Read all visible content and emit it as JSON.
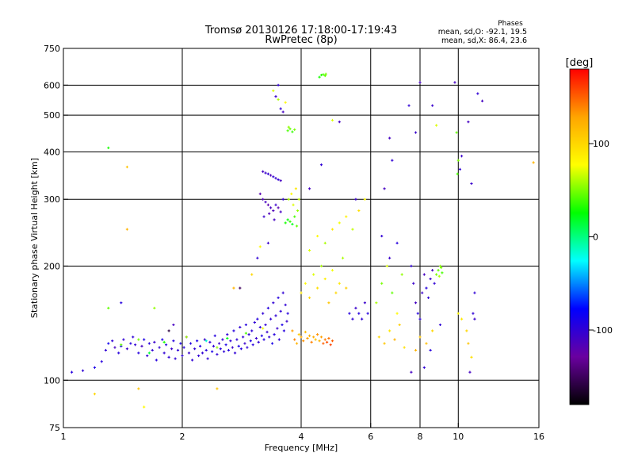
{
  "title": {
    "line1": "Tromsø 20130126 17:18:00-17:19:43",
    "line2": "RwPretec (8p)"
  },
  "stats": {
    "heading": "Phases",
    "line_o": "mean, sd,O: -92.1, 19.5",
    "line_x": "mean, sd,X: 86.4, 23.6"
  },
  "colorbar": {
    "label": "[deg]",
    "min": -180,
    "max": 180,
    "ticks": [
      {
        "value": 100,
        "label": "100"
      },
      {
        "value": 0,
        "label": "0"
      },
      {
        "value": -100,
        "label": "-100"
      }
    ],
    "stops": [
      "#000000",
      "#6a00a0",
      "#0000ff",
      "#00ffff",
      "#00ff00",
      "#ffff00",
      "#ffa500",
      "#ff0000"
    ]
  },
  "chart_data": {
    "type": "scatter",
    "xlabel": "Frequency [MHz]",
    "ylabel": "Stationary phase Virtual Height [km]",
    "xscale": "log",
    "yscale": "log",
    "xlim": [
      1,
      16
    ],
    "ylim": [
      75,
      750
    ],
    "grid": true,
    "xticks": [
      {
        "value": 1,
        "label": "1"
      },
      {
        "value": 2,
        "label": "2"
      },
      {
        "value": 4,
        "label": "4"
      },
      {
        "value": 6,
        "label": "6"
      },
      {
        "value": 8,
        "label": "8"
      },
      {
        "value": 10,
        "label": "10"
      },
      {
        "value": 16,
        "label": "16"
      }
    ],
    "yticks": [
      {
        "value": 75,
        "label": "75"
      },
      {
        "value": 100,
        "label": "100"
      },
      {
        "value": 200,
        "label": "200"
      },
      {
        "value": 300,
        "label": "300"
      },
      {
        "value": 400,
        "label": "400"
      },
      {
        "value": 500,
        "label": "500"
      },
      {
        "value": 600,
        "label": "600"
      },
      {
        "value": 750,
        "label": "750"
      }
    ],
    "xgrid": [
      2,
      4,
      6,
      8,
      10
    ],
    "ygrid": [
      100,
      200,
      300,
      400,
      500,
      600
    ],
    "points": [
      [
        1.05,
        105,
        -95
      ],
      [
        1.12,
        106,
        -100
      ],
      [
        1.2,
        108,
        -90
      ],
      [
        1.25,
        112,
        -95
      ],
      [
        1.28,
        120,
        -100
      ],
      [
        1.3,
        125,
        -85
      ],
      [
        1.33,
        127,
        -100
      ],
      [
        1.35,
        122,
        -110
      ],
      [
        1.38,
        118,
        -95
      ],
      [
        1.4,
        123,
        -90
      ],
      [
        1.42,
        128,
        -100
      ],
      [
        1.45,
        121,
        -105
      ],
      [
        1.48,
        125,
        -95
      ],
      [
        1.5,
        130,
        -100
      ],
      [
        1.52,
        124,
        -100
      ],
      [
        1.55,
        118,
        -95
      ],
      [
        1.58,
        123,
        -110
      ],
      [
        1.6,
        128,
        -90
      ],
      [
        1.63,
        116,
        -100
      ],
      [
        1.65,
        125,
        -95
      ],
      [
        1.68,
        120,
        -100
      ],
      [
        1.7,
        126,
        -105
      ],
      [
        1.72,
        113,
        -95
      ],
      [
        1.75,
        122,
        -100
      ],
      [
        1.78,
        128,
        -90
      ],
      [
        1.8,
        118,
        -100
      ],
      [
        1.82,
        124,
        -95
      ],
      [
        1.85,
        115,
        -100
      ],
      [
        1.88,
        121,
        -105
      ],
      [
        1.9,
        127,
        -95
      ],
      [
        1.92,
        114,
        -100
      ],
      [
        1.95,
        120,
        -100
      ],
      [
        1.98,
        125,
        -90
      ],
      [
        2.0,
        116,
        -100
      ],
      [
        2.02,
        122,
        -95
      ],
      [
        2.05,
        130,
        -100
      ],
      [
        2.08,
        118,
        -105
      ],
      [
        2.1,
        125,
        -95
      ],
      [
        2.12,
        113,
        -100
      ],
      [
        2.15,
        121,
        -100
      ],
      [
        2.18,
        127,
        -90
      ],
      [
        2.2,
        116,
        -100
      ],
      [
        2.22,
        123,
        -95
      ],
      [
        2.25,
        118,
        -100
      ],
      [
        2.28,
        128,
        -105
      ],
      [
        2.3,
        120,
        -95
      ],
      [
        2.32,
        114,
        -100
      ],
      [
        2.35,
        126,
        -100
      ],
      [
        2.38,
        119,
        -90
      ],
      [
        2.4,
        123,
        -100
      ],
      [
        2.42,
        131,
        -95
      ],
      [
        2.45,
        117,
        -100
      ],
      [
        2.48,
        125,
        -105
      ],
      [
        2.5,
        121,
        -95
      ],
      [
        2.53,
        128,
        -100
      ],
      [
        2.55,
        119,
        -100
      ],
      [
        2.58,
        124,
        -90
      ],
      [
        2.6,
        132,
        -100
      ],
      [
        2.62,
        120,
        -95
      ],
      [
        2.65,
        127,
        -100
      ],
      [
        2.68,
        122,
        -105
      ],
      [
        2.7,
        135,
        -95
      ],
      [
        2.72,
        118,
        -100
      ],
      [
        2.75,
        128,
        -100
      ],
      [
        2.78,
        123,
        -90
      ],
      [
        2.8,
        138,
        -100
      ],
      [
        2.82,
        121,
        -95
      ],
      [
        2.85,
        130,
        -100
      ],
      [
        2.88,
        125,
        -105
      ],
      [
        2.9,
        140,
        -95
      ],
      [
        2.92,
        122,
        -100
      ],
      [
        2.95,
        132,
        -100
      ],
      [
        2.98,
        127,
        -90
      ],
      [
        3.0,
        135,
        -100
      ],
      [
        3.02,
        124,
        -95
      ],
      [
        3.05,
        142,
        -100
      ],
      [
        3.08,
        129,
        -105
      ],
      [
        3.1,
        145,
        -95
      ],
      [
        3.12,
        126,
        -100
      ],
      [
        3.15,
        138,
        -100
      ],
      [
        3.18,
        131,
        -90
      ],
      [
        3.2,
        150,
        -100
      ],
      [
        3.22,
        128,
        -95
      ],
      [
        3.25,
        140,
        -100
      ],
      [
        3.28,
        134,
        -105
      ],
      [
        3.3,
        155,
        -95
      ],
      [
        3.32,
        130,
        -100
      ],
      [
        3.35,
        145,
        -100
      ],
      [
        3.38,
        125,
        -90
      ],
      [
        3.4,
        160,
        -100
      ],
      [
        3.42,
        132,
        -95
      ],
      [
        3.45,
        148,
        -100
      ],
      [
        3.48,
        137,
        -105
      ],
      [
        3.5,
        165,
        -95
      ],
      [
        3.52,
        128,
        -100
      ],
      [
        3.55,
        152,
        -100
      ],
      [
        3.58,
        140,
        -90
      ],
      [
        3.6,
        170,
        -100
      ],
      [
        3.62,
        135,
        -95
      ],
      [
        3.65,
        158,
        -100
      ],
      [
        3.68,
        143,
        -105
      ],
      [
        3.7,
        150,
        -95
      ],
      [
        1.4,
        124,
        45
      ],
      [
        1.55,
        128,
        50
      ],
      [
        1.8,
        126,
        30
      ],
      [
        2.05,
        130,
        60
      ],
      [
        2.3,
        127,
        -15
      ],
      [
        2.6,
        129,
        20
      ],
      [
        2.9,
        133,
        40
      ],
      [
        3.2,
        137,
        75
      ],
      [
        1.65,
        118,
        15
      ],
      [
        2.45,
        122,
        55
      ],
      [
        3.2,
        355,
        -110
      ],
      [
        3.25,
        352,
        -105
      ],
      [
        3.3,
        350,
        -100
      ],
      [
        3.35,
        347,
        -115
      ],
      [
        3.4,
        344,
        -100
      ],
      [
        3.45,
        341,
        -105
      ],
      [
        3.5,
        338,
        -100
      ],
      [
        3.55,
        336,
        -110
      ],
      [
        3.15,
        310,
        -120
      ],
      [
        3.2,
        300,
        -115
      ],
      [
        3.25,
        295,
        -110
      ],
      [
        3.3,
        290,
        -120
      ],
      [
        3.35,
        285,
        -110
      ],
      [
        3.4,
        280,
        -115
      ],
      [
        3.45,
        290,
        -105
      ],
      [
        3.5,
        285,
        -120
      ],
      [
        3.55,
        278,
        -110
      ],
      [
        3.6,
        300,
        -100
      ],
      [
        3.22,
        270,
        -105
      ],
      [
        3.32,
        275,
        -115
      ],
      [
        3.42,
        265,
        -110
      ],
      [
        3.65,
        260,
        30
      ],
      [
        3.7,
        265,
        25
      ],
      [
        3.75,
        262,
        35
      ],
      [
        3.8,
        258,
        20
      ],
      [
        3.85,
        270,
        40
      ],
      [
        3.9,
        255,
        45
      ],
      [
        3.72,
        300,
        60
      ],
      [
        3.82,
        290,
        70
      ],
      [
        3.92,
        280,
        55
      ],
      [
        3.78,
        310,
        80
      ],
      [
        3.88,
        320,
        90
      ],
      [
        3.95,
        300,
        65
      ],
      [
        3.5,
        550,
        60
      ],
      [
        3.55,
        520,
        -100
      ],
      [
        3.6,
        510,
        -110
      ],
      [
        3.45,
        560,
        -105
      ],
      [
        3.4,
        580,
        70
      ],
      [
        3.5,
        600,
        -100
      ],
      [
        3.65,
        540,
        80
      ],
      [
        3.7,
        455,
        40
      ],
      [
        3.75,
        460,
        45
      ],
      [
        3.8,
        452,
        35
      ],
      [
        3.85,
        458,
        50
      ],
      [
        3.72,
        465,
        55
      ],
      [
        4.55,
        640,
        40
      ],
      [
        4.6,
        635,
        45
      ],
      [
        4.5,
        638,
        35
      ],
      [
        4.62,
        642,
        50
      ],
      [
        4.45,
        630,
        30
      ],
      [
        3.8,
        135,
        130
      ],
      [
        3.85,
        128,
        140
      ],
      [
        3.9,
        125,
        120
      ],
      [
        3.95,
        132,
        110
      ],
      [
        4.0,
        130,
        125
      ],
      [
        4.05,
        127,
        135
      ],
      [
        4.1,
        134,
        115
      ],
      [
        4.15,
        129,
        130
      ],
      [
        4.2,
        131,
        120
      ],
      [
        4.25,
        126,
        140
      ],
      [
        4.3,
        130,
        125
      ],
      [
        4.35,
        128,
        110
      ],
      [
        4.4,
        132,
        135
      ],
      [
        4.45,
        127,
        120
      ],
      [
        4.5,
        130,
        130
      ],
      [
        4.55,
        125,
        150
      ],
      [
        4.6,
        128,
        140
      ],
      [
        4.65,
        126,
        155
      ],
      [
        4.7,
        129,
        145
      ],
      [
        4.75,
        124,
        160
      ],
      [
        4.8,
        127,
        150
      ],
      [
        4.0,
        170,
        90
      ],
      [
        4.1,
        180,
        80
      ],
      [
        4.2,
        165,
        100
      ],
      [
        4.3,
        190,
        70
      ],
      [
        4.4,
        175,
        95
      ],
      [
        4.5,
        200,
        60
      ],
      [
        4.6,
        185,
        85
      ],
      [
        4.7,
        160,
        110
      ],
      [
        4.8,
        195,
        75
      ],
      [
        4.9,
        170,
        100
      ],
      [
        5.0,
        180,
        90
      ],
      [
        5.1,
        210,
        60
      ],
      [
        5.2,
        175,
        105
      ],
      [
        5.3,
        150,
        -95
      ],
      [
        5.4,
        145,
        -100
      ],
      [
        5.5,
        155,
        -105
      ],
      [
        5.6,
        150,
        -95
      ],
      [
        5.7,
        145,
        -100
      ],
      [
        5.8,
        160,
        -105
      ],
      [
        5.9,
        150,
        -95
      ],
      [
        4.2,
        220,
        70
      ],
      [
        4.4,
        240,
        80
      ],
      [
        4.6,
        230,
        60
      ],
      [
        4.8,
        250,
        90
      ],
      [
        5.0,
        260,
        75
      ],
      [
        5.2,
        270,
        85
      ],
      [
        5.4,
        250,
        65
      ],
      [
        5.6,
        280,
        95
      ],
      [
        5.8,
        300,
        80
      ],
      [
        4.2,
        320,
        -110
      ],
      [
        4.5,
        370,
        -100
      ],
      [
        5.0,
        480,
        -110
      ],
      [
        5.5,
        300,
        -105
      ],
      [
        4.8,
        485,
        70
      ],
      [
        6.2,
        160,
        60
      ],
      [
        6.4,
        180,
        50
      ],
      [
        6.6,
        200,
        70
      ],
      [
        6.8,
        170,
        45
      ],
      [
        7.0,
        150,
        80
      ],
      [
        7.2,
        190,
        55
      ],
      [
        6.3,
        130,
        100
      ],
      [
        6.5,
        125,
        110
      ],
      [
        6.7,
        135,
        90
      ],
      [
        6.9,
        128,
        120
      ],
      [
        7.1,
        140,
        105
      ],
      [
        7.3,
        122,
        95
      ],
      [
        6.4,
        240,
        -100
      ],
      [
        6.7,
        210,
        -105
      ],
      [
        7.0,
        230,
        -95
      ],
      [
        6.5,
        320,
        -110
      ],
      [
        7.6,
        200,
        -100
      ],
      [
        7.7,
        180,
        -105
      ],
      [
        7.8,
        160,
        -110
      ],
      [
        7.9,
        150,
        -95
      ],
      [
        8.0,
        145,
        -100
      ],
      [
        8.1,
        170,
        -105
      ],
      [
        8.2,
        190,
        -110
      ],
      [
        8.3,
        175,
        -95
      ],
      [
        8.4,
        165,
        -100
      ],
      [
        8.5,
        185,
        -105
      ],
      [
        8.6,
        195,
        -110
      ],
      [
        8.7,
        180,
        -100
      ],
      [
        8.8,
        190,
        50
      ],
      [
        8.9,
        195,
        45
      ],
      [
        9.0,
        200,
        55
      ],
      [
        9.1,
        192,
        40
      ],
      [
        8.95,
        188,
        60
      ],
      [
        9.05,
        198,
        50
      ],
      [
        8.0,
        130,
        110
      ],
      [
        8.3,
        125,
        115
      ],
      [
        8.6,
        135,
        100
      ],
      [
        7.8,
        120,
        120
      ],
      [
        7.6,
        105,
        -110
      ],
      [
        8.2,
        108,
        -100
      ],
      [
        8.5,
        120,
        -95
      ],
      [
        9.0,
        140,
        -100
      ],
      [
        7.5,
        530,
        -100
      ],
      [
        8.0,
        610,
        -110
      ],
      [
        8.6,
        530,
        -105
      ],
      [
        8.8,
        470,
        70
      ],
      [
        9.8,
        610,
        -110
      ],
      [
        9.9,
        450,
        45
      ],
      [
        10.0,
        380,
        50
      ],
      [
        9.95,
        350,
        40
      ],
      [
        10.1,
        360,
        -100
      ],
      [
        10.2,
        390,
        -105
      ],
      [
        10.0,
        150,
        80
      ],
      [
        10.2,
        145,
        90
      ],
      [
        10.5,
        135,
        100
      ],
      [
        10.6,
        125,
        110
      ],
      [
        10.8,
        115,
        95
      ],
      [
        10.7,
        105,
        -110
      ],
      [
        10.9,
        150,
        -100
      ],
      [
        11.0,
        145,
        -105
      ],
      [
        10.6,
        480,
        -110
      ],
      [
        10.8,
        330,
        -105
      ],
      [
        11.2,
        570,
        -100
      ],
      [
        11.5,
        545,
        -110
      ],
      [
        11.0,
        170,
        -100
      ],
      [
        15.5,
        375,
        120
      ],
      [
        6.7,
        435,
        -110
      ],
      [
        7.8,
        450,
        -105
      ],
      [
        6.8,
        380,
        -100
      ],
      [
        1.3,
        410,
        30
      ],
      [
        1.45,
        365,
        110
      ],
      [
        1.45,
        250,
        120
      ],
      [
        1.55,
        95,
        110
      ],
      [
        1.2,
        92,
        100
      ],
      [
        1.6,
        85,
        80
      ],
      [
        2.45,
        95,
        110
      ],
      [
        1.4,
        160,
        -95
      ],
      [
        1.3,
        155,
        45
      ],
      [
        1.7,
        155,
        55
      ],
      [
        1.9,
        140,
        -110
      ],
      [
        2.7,
        175,
        120
      ],
      [
        3.0,
        190,
        100
      ],
      [
        3.1,
        210,
        -100
      ],
      [
        3.3,
        230,
        -105
      ],
      [
        3.15,
        225,
        80
      ],
      [
        1.85,
        135,
        -160
      ],
      [
        2.8,
        175,
        -150
      ]
    ]
  }
}
